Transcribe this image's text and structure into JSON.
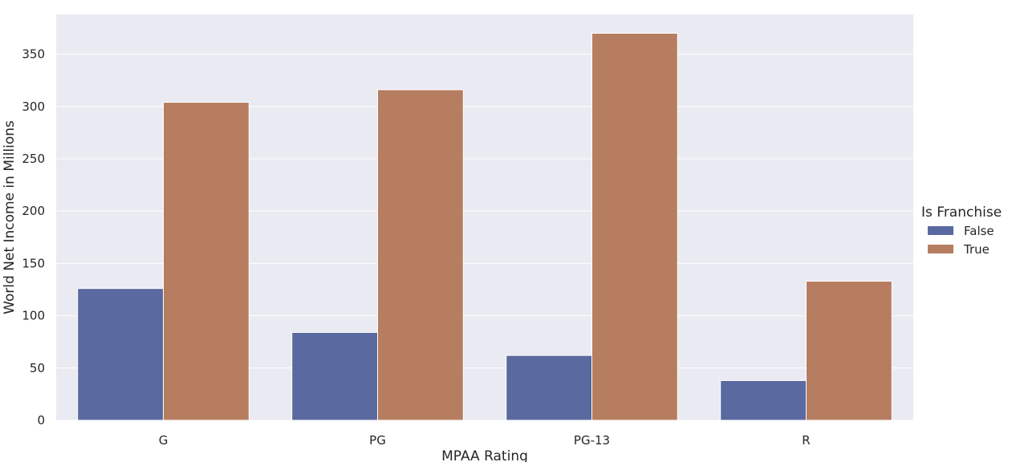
{
  "chart_data": {
    "type": "bar",
    "categories": [
      "G",
      "PG",
      "PG-13",
      "R"
    ],
    "series": [
      {
        "name": "False",
        "values": [
          126,
          84,
          62,
          38
        ],
        "color": "#5a6aa0"
      },
      {
        "name": "True",
        "values": [
          304,
          316,
          370,
          133
        ],
        "color": "#b77d61"
      }
    ],
    "xlabel": "MPAA Rating",
    "ylabel": "World Net Income in Millions",
    "ylim": [
      0,
      388
    ],
    "yticks": [
      0,
      50,
      100,
      150,
      200,
      250,
      300,
      350
    ],
    "grid": true,
    "legend": {
      "title": "Is Franchise",
      "placement": "center-right"
    },
    "plot_background": "#eaeaf2"
  }
}
